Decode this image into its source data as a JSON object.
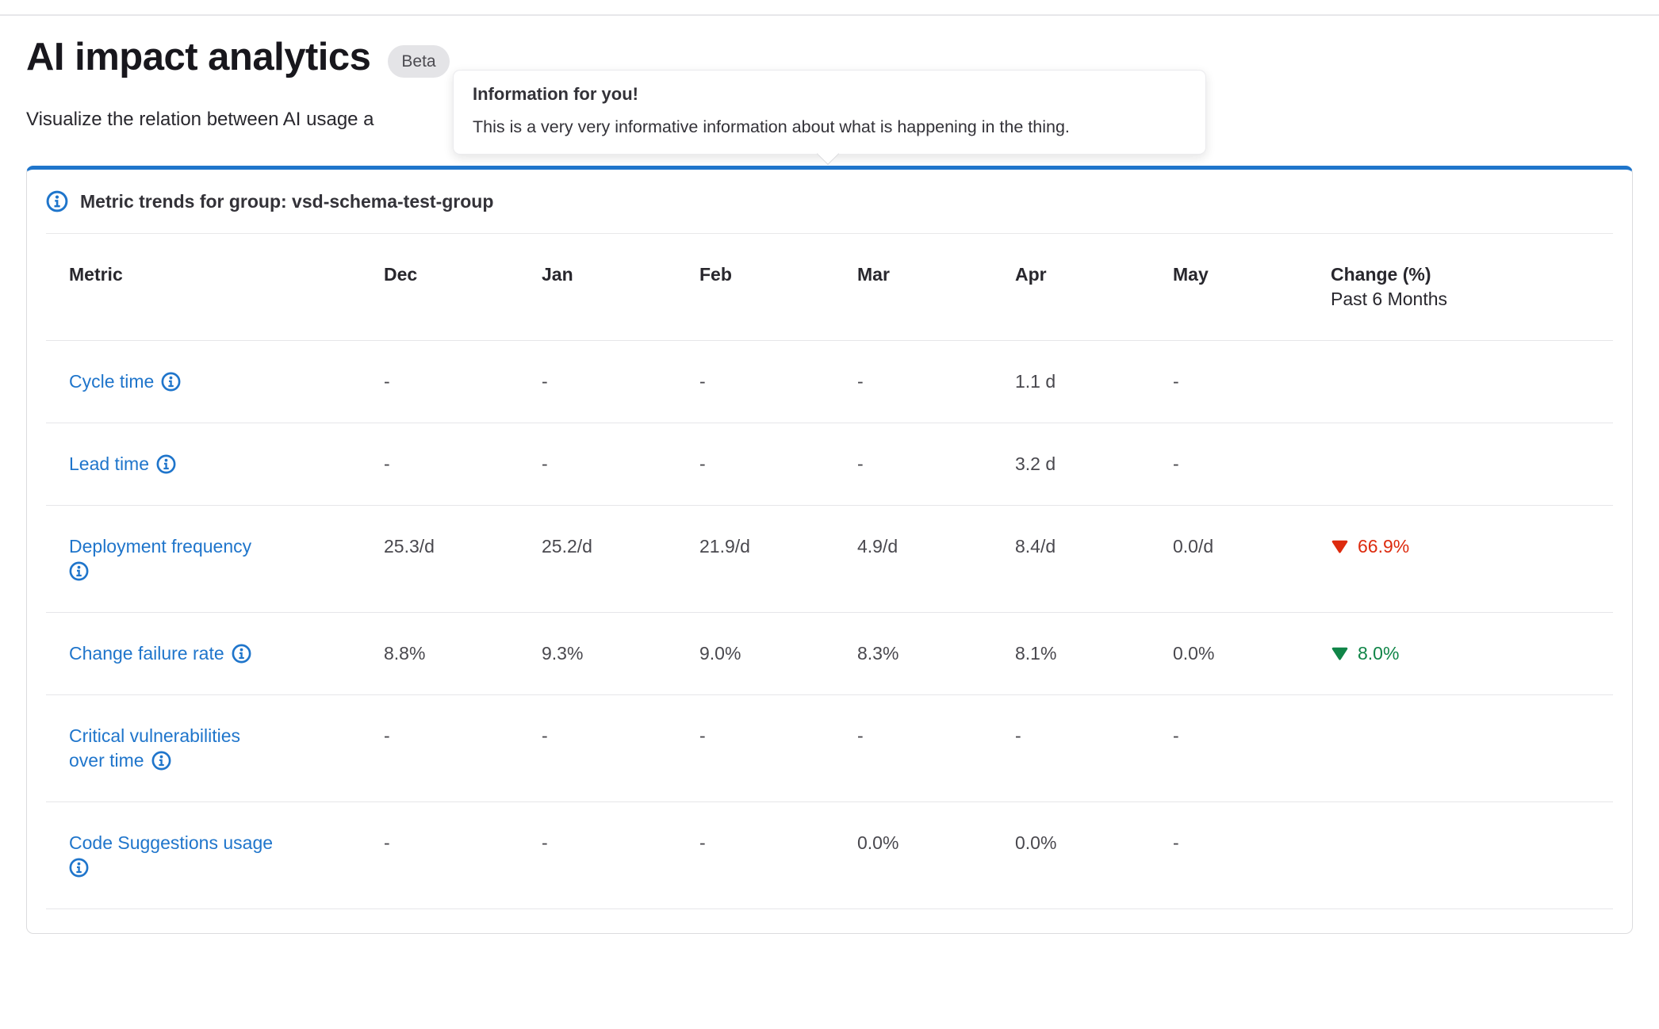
{
  "page": {
    "title": "AI impact analytics",
    "badge": "Beta",
    "subtitle": "Visualize the relation between AI usage a"
  },
  "tooltip": {
    "title": "Information for you!",
    "body": "This is a very very informative information about what is happening in the thing."
  },
  "panel": {
    "title": "Metric trends for group: vsd-schema-test-group"
  },
  "colors": {
    "accent_blue": "#1f75cb",
    "link_blue": "#1f75cb",
    "danger_red": "#dd2b0e",
    "success_green": "#108548",
    "badge_bg": "#e4e4e7",
    "border_gray": "#dcdcde"
  },
  "table": {
    "month_columns": [
      "Metric",
      "Dec",
      "Jan",
      "Feb",
      "Mar",
      "Apr",
      "May"
    ],
    "change_column": {
      "line1": "Change (%)",
      "line2": "Past 6 Months"
    },
    "rows": [
      {
        "metric_lines": [
          "Cycle time"
        ],
        "icon_placement": "inline",
        "values": [
          "-",
          "-",
          "-",
          "-",
          "1.1 d",
          "-"
        ],
        "change": null
      },
      {
        "metric_lines": [
          "Lead time"
        ],
        "icon_placement": "inline",
        "values": [
          "-",
          "-",
          "-",
          "-",
          "3.2 d",
          "-"
        ],
        "change": null
      },
      {
        "metric_lines": [
          "Deployment frequency"
        ],
        "icon_placement": "newline",
        "values": [
          "25.3/d",
          "25.2/d",
          "21.9/d",
          "4.9/d",
          "8.4/d",
          "0.0/d"
        ],
        "change": {
          "direction": "down",
          "trend": "bad",
          "value": "66.9%"
        }
      },
      {
        "metric_lines": [
          "Change failure rate"
        ],
        "icon_placement": "inline",
        "values": [
          "8.8%",
          "9.3%",
          "9.0%",
          "8.3%",
          "8.1%",
          "0.0%"
        ],
        "change": {
          "direction": "down",
          "trend": "good",
          "value": "8.0%"
        }
      },
      {
        "metric_lines": [
          "Critical vulnerabilities",
          "over time"
        ],
        "icon_placement": "inline",
        "values": [
          "-",
          "-",
          "-",
          "-",
          "-",
          "-"
        ],
        "change": null
      },
      {
        "metric_lines": [
          "Code Suggestions usage"
        ],
        "icon_placement": "newline",
        "values": [
          "-",
          "-",
          "-",
          "0.0%",
          "0.0%",
          "-"
        ],
        "change": null
      }
    ]
  }
}
